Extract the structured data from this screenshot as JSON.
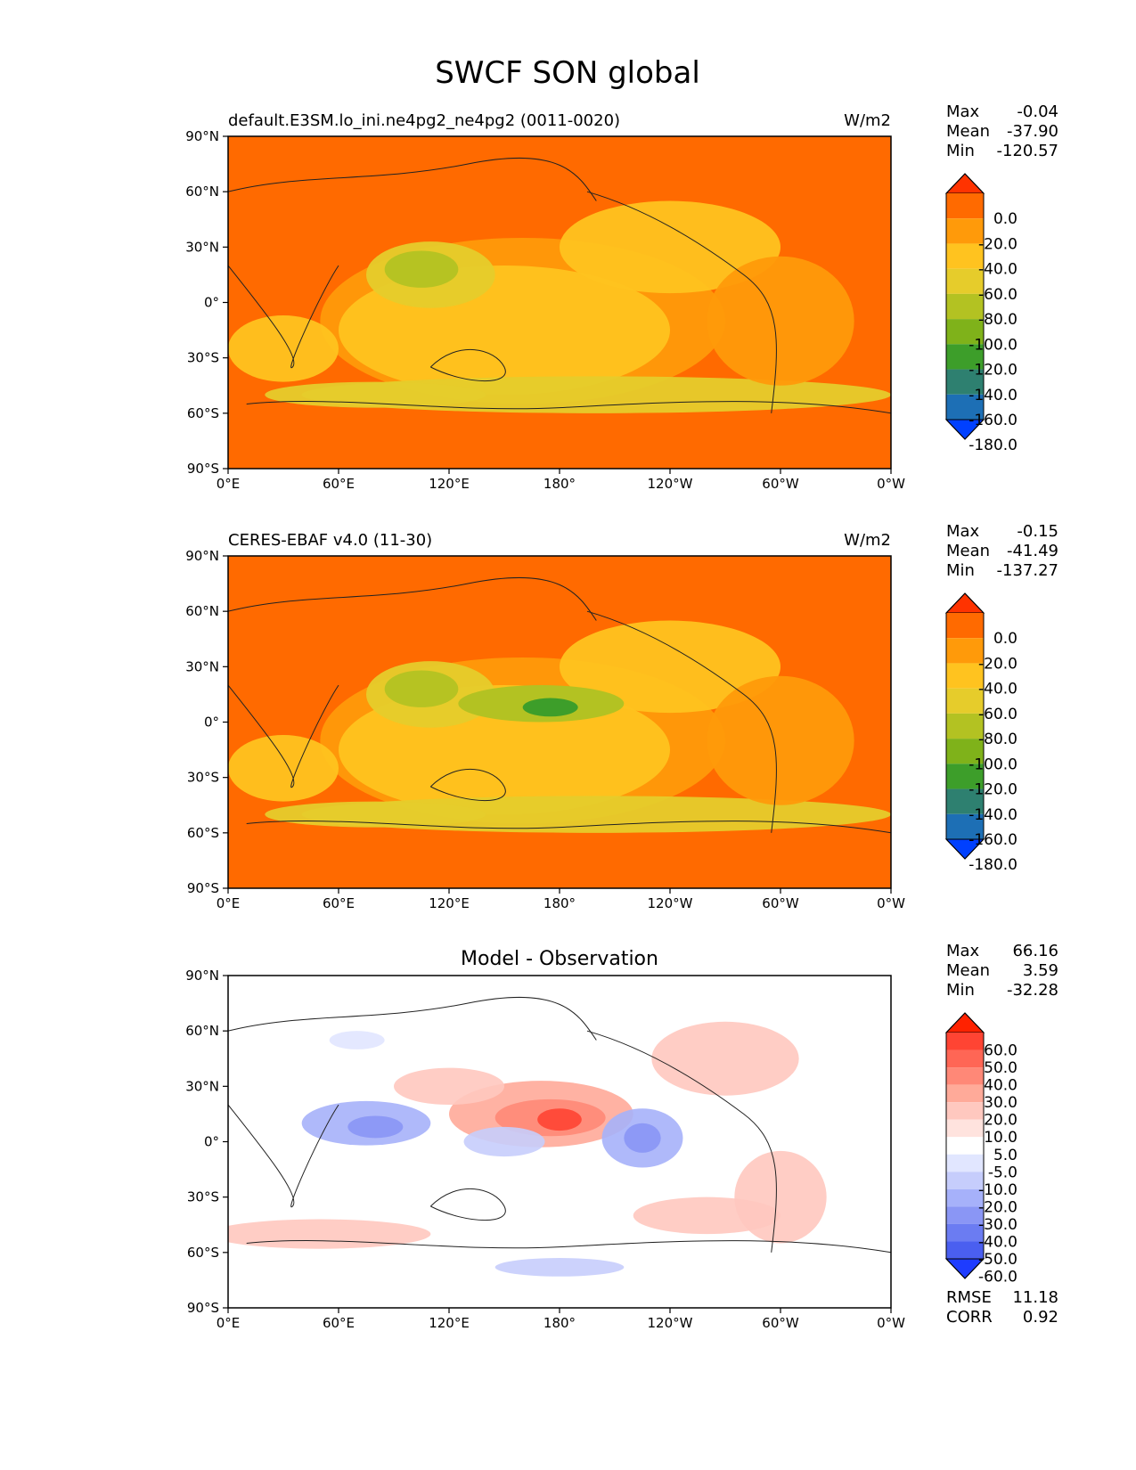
{
  "figure": {
    "title": "SWCF SON global"
  },
  "chart_data": [
    {
      "type": "heatmap",
      "title": "default.E3SM.lo_ini.ne4pg2_ne4pg2 (0011-0020)",
      "units": "W/m2",
      "x_ticks": [
        "0°E",
        "60°E",
        "120°E",
        "180°",
        "120°W",
        "60°W",
        "0°W"
      ],
      "y_ticks": [
        "90°N",
        "60°N",
        "30°N",
        "0°",
        "30°S",
        "60°S",
        "90°S"
      ],
      "xlim": [
        0,
        360
      ],
      "ylim": [
        -90,
        90
      ],
      "stats": {
        "max_label": "Max",
        "max": "-0.04",
        "mean_label": "Mean",
        "mean": "-37.90",
        "min_label": "Min",
        "min": "-120.57"
      },
      "colorbar": {
        "labels": [
          "0.0",
          "-20.0",
          "-40.0",
          "-60.0",
          "-80.0",
          "-100.0",
          "-120.0",
          "-140.0",
          "-160.0",
          "-180.0"
        ],
        "colors": [
          "#ff3300",
          "#ff6a00",
          "#ff9a0a",
          "#ffc31f",
          "#e6cc2b",
          "#b3c222",
          "#7fb21a",
          "#3d9e2a",
          "#2e8070",
          "#1d6fb5",
          "#0040ff"
        ]
      }
    },
    {
      "type": "heatmap",
      "title": "CERES-EBAF v4.0 (11-30)",
      "units": "W/m2",
      "x_ticks": [
        "0°E",
        "60°E",
        "120°E",
        "180°",
        "120°W",
        "60°W",
        "0°W"
      ],
      "y_ticks": [
        "90°N",
        "60°N",
        "30°N",
        "0°",
        "30°S",
        "60°S",
        "90°S"
      ],
      "xlim": [
        0,
        360
      ],
      "ylim": [
        -90,
        90
      ],
      "stats": {
        "max_label": "Max",
        "max": "-0.15",
        "mean_label": "Mean",
        "mean": "-41.49",
        "min_label": "Min",
        "min": "-137.27"
      },
      "colorbar": {
        "labels": [
          "0.0",
          "-20.0",
          "-40.0",
          "-60.0",
          "-80.0",
          "-100.0",
          "-120.0",
          "-140.0",
          "-160.0",
          "-180.0"
        ],
        "colors": [
          "#ff3300",
          "#ff6a00",
          "#ff9a0a",
          "#ffc31f",
          "#e6cc2b",
          "#b3c222",
          "#7fb21a",
          "#3d9e2a",
          "#2e8070",
          "#1d6fb5",
          "#0040ff"
        ]
      }
    },
    {
      "type": "heatmap",
      "title": "Model - Observation",
      "units": "",
      "x_ticks": [
        "0°E",
        "60°E",
        "120°E",
        "180°",
        "120°W",
        "60°W",
        "0°W"
      ],
      "y_ticks": [
        "90°N",
        "60°N",
        "30°N",
        "0°",
        "30°S",
        "60°S",
        "90°S"
      ],
      "xlim": [
        0,
        360
      ],
      "ylim": [
        -90,
        90
      ],
      "stats": {
        "max_label": "Max",
        "max": "66.16",
        "mean_label": "Mean",
        "mean": "3.59",
        "min_label": "Min",
        "min": "-32.28"
      },
      "extra_stats": {
        "rmse_label": "RMSE",
        "rmse": "11.18",
        "corr_label": "CORR",
        "corr": "0.92"
      },
      "colorbar": {
        "labels": [
          "60.0",
          "50.0",
          "40.0",
          "30.0",
          "20.0",
          "10.0",
          "5.0",
          "-5.0",
          "-10.0",
          "-20.0",
          "-30.0",
          "-40.0",
          "-50.0",
          "-60.0"
        ],
        "colors": [
          "#ff2200",
          "#ff4433",
          "#ff6655",
          "#ff8877",
          "#ffaa99",
          "#ffc8bf",
          "#ffe3de",
          "#ffffff",
          "#e1e6ff",
          "#c6cdfc",
          "#a6b1fa",
          "#8a96f5",
          "#6b7cf2",
          "#4a5ff0",
          "#1e3cff"
        ]
      }
    }
  ]
}
